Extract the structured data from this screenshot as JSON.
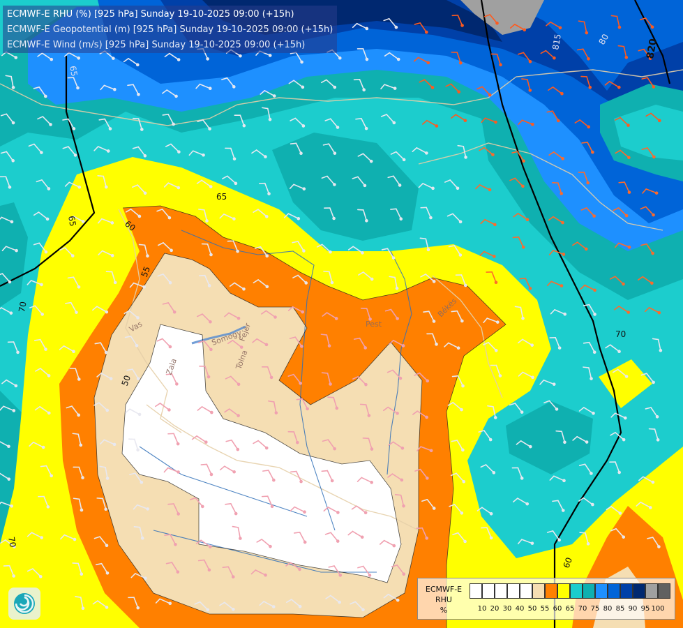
{
  "titles": [
    "ECMWF-E RHU (%) [925 hPa] Sunday 19-10-2025 09:00 (+15h)",
    "ECMWF-E Geopotential (m) [925 hPa] Sunday 19-10-2025 09:00 (+15h)",
    "ECMWF-E Wind (m/s) [925 hPa] Sunday 19-10-2025 09:00 (+15h)"
  ],
  "legend": {
    "label_model": "ECMWF-E",
    "label_var": "RHU",
    "label_unit": "%",
    "colors": [
      "#ffffff",
      "#ffffff",
      "#ffffff",
      "#ffffff",
      "#ffffff",
      "#f5deb3",
      "#ff8000",
      "#ffff00",
      "#1ccdcd",
      "#0fb0b0",
      "#1e90ff",
      "#0064d8",
      "#0040a8",
      "#002870",
      "#a0a0a0",
      "#606060"
    ],
    "tick_labels": [
      "10",
      "20",
      "30",
      "40",
      "50",
      "55",
      "60",
      "65",
      "70",
      "75",
      "80",
      "85",
      "90",
      "95",
      "100"
    ]
  },
  "geopotential_labels": [
    "65",
    "65",
    "70",
    "70",
    "70",
    "60",
    "50",
    "55",
    "60",
    "820",
    "815",
    "80",
    "65"
  ],
  "region_labels": [
    "Vas",
    "Zala",
    "Somogy",
    "Tolna",
    "Fejér",
    "Pest",
    "Békés"
  ],
  "colors": {
    "white": "#ffffff",
    "wheat": "#f5deb3",
    "orange": "#ff8000",
    "yellow": "#ffff00",
    "cyan": "#1ccdcd",
    "teal": "#0fb0b0",
    "blue": "#1e90ff",
    "mid_blue": "#0064d8",
    "dark_blue": "#0040a8",
    "navy": "#002870",
    "grey": "#a0a0a0"
  }
}
